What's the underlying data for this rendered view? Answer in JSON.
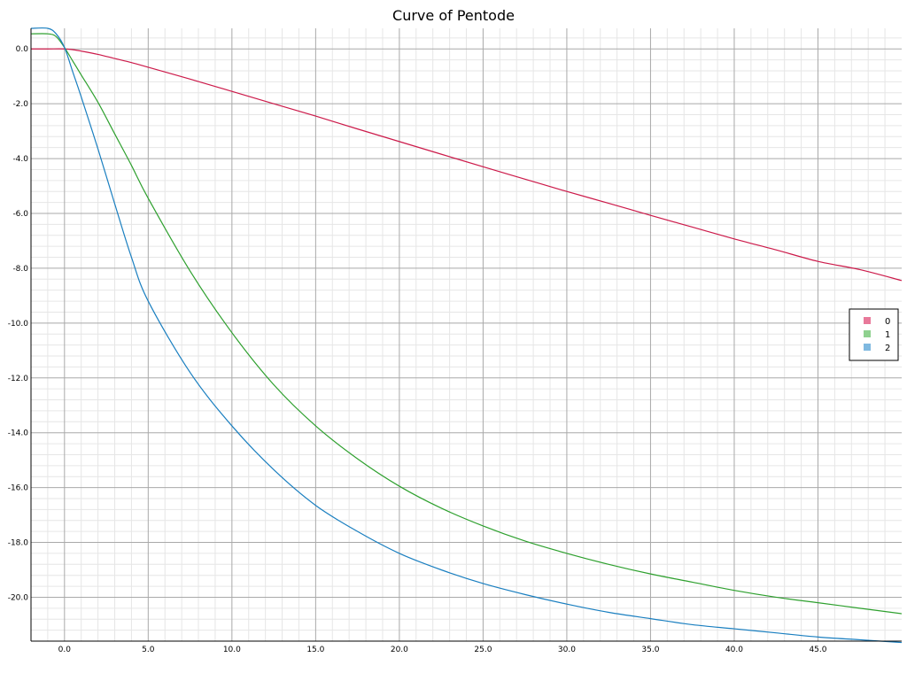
{
  "chart_data": {
    "type": "line",
    "title": "Curve of Pentode",
    "xlabel": "",
    "ylabel": "",
    "xlim": [
      -2.0,
      50.0
    ],
    "ylim": [
      -21.6,
      0.75
    ],
    "x_ticks": [
      "0.0",
      "5.0",
      "10.0",
      "15.0",
      "20.0",
      "25.0",
      "30.0",
      "35.0",
      "40.0",
      "45.0"
    ],
    "y_ticks": [
      "0.0",
      "-2.0",
      "-4.0",
      "-6.0",
      "-8.0",
      "-10.0",
      "-12.0",
      "-14.0",
      "-16.0",
      "-18.0",
      "-20.0"
    ],
    "x_tick_values": [
      0,
      5,
      10,
      15,
      20,
      25,
      30,
      35,
      40,
      45
    ],
    "y_tick_values": [
      0,
      -2,
      -4,
      -6,
      -8,
      -10,
      -12,
      -14,
      -16,
      -18,
      -20
    ],
    "grid": true,
    "legend_position": "right",
    "series": [
      {
        "name": "0",
        "color": "#cc1a4a",
        "legend_color": "#e8799a",
        "x": [
          -2.0,
          -1.0,
          0.0,
          0.5,
          1.0,
          2.0,
          3.0,
          4.0,
          5.0,
          7.5,
          10.0,
          12.5,
          15.0,
          17.5,
          20.0,
          22.5,
          25.0,
          27.5,
          30.0,
          32.5,
          35.0,
          37.5,
          40.0,
          42.5,
          45.0,
          47.5,
          50.0
        ],
        "y": [
          0.0,
          0.0,
          0.0,
          -0.03,
          -0.08,
          -0.2,
          -0.35,
          -0.5,
          -0.67,
          -1.1,
          -1.55,
          -2.0,
          -2.45,
          -2.92,
          -3.38,
          -3.84,
          -4.3,
          -4.75,
          -5.2,
          -5.63,
          -6.07,
          -6.5,
          -6.93,
          -7.33,
          -7.75,
          -8.05,
          -8.45
        ]
      },
      {
        "name": "1",
        "color": "#2ea02e",
        "legend_color": "#8fd18f",
        "x": [
          -2.0,
          -1.0,
          -0.5,
          0.0,
          0.5,
          1.0,
          2.0,
          3.0,
          4.0,
          5.0,
          7.5,
          10.0,
          12.5,
          15.0,
          17.5,
          20.0,
          22.5,
          25.0,
          27.5,
          30.0,
          32.5,
          35.0,
          37.5,
          40.0,
          42.5,
          45.0,
          47.5,
          50.0
        ],
        "y": [
          0.55,
          0.55,
          0.45,
          0.05,
          -0.45,
          -0.95,
          -1.95,
          -3.1,
          -4.25,
          -5.45,
          -8.1,
          -10.35,
          -12.25,
          -13.75,
          -14.95,
          -15.95,
          -16.75,
          -17.4,
          -17.95,
          -18.4,
          -18.8,
          -19.15,
          -19.45,
          -19.75,
          -20.0,
          -20.2,
          -20.4,
          -20.6
        ]
      },
      {
        "name": "2",
        "color": "#1a7fc0",
        "legend_color": "#7fb9e0",
        "x": [
          -2.0,
          -1.0,
          -0.5,
          0.0,
          0.5,
          1.0,
          2.0,
          3.0,
          4.0,
          5.0,
          7.5,
          10.0,
          12.5,
          15.0,
          17.5,
          20.0,
          22.5,
          25.0,
          27.5,
          30.0,
          32.5,
          35.0,
          37.5,
          40.0,
          42.5,
          45.0,
          47.5,
          50.0
        ],
        "y": [
          0.75,
          0.75,
          0.55,
          0.05,
          -0.85,
          -1.75,
          -3.65,
          -5.65,
          -7.6,
          -9.2,
          -11.8,
          -13.75,
          -15.35,
          -16.65,
          -17.6,
          -18.4,
          -19.0,
          -19.5,
          -19.9,
          -20.25,
          -20.55,
          -20.78,
          -21.0,
          -21.15,
          -21.3,
          -21.45,
          -21.55,
          -21.65
        ]
      }
    ]
  }
}
